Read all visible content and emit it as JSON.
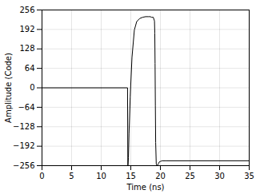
{
  "chart_data": {
    "type": "line",
    "xlabel": "Time (ns)",
    "ylabel": "Amplitude (Code)",
    "x": [
      0,
      14.45,
      14.5,
      14.52,
      14.6,
      14.7,
      14.9,
      15.2,
      15.6,
      16.0,
      16.5,
      17.0,
      17.5,
      18.0,
      18.3,
      18.5,
      18.8,
      19.0,
      19.05,
      19.1,
      19.15,
      19.2,
      19.3,
      19.4,
      19.5,
      19.6,
      19.7,
      19.8,
      20.0,
      20.3,
      21.0,
      35
    ],
    "values": [
      0,
      0,
      -256,
      -256,
      -230,
      -150,
      -30,
      100,
      190,
      218,
      228,
      232,
      234,
      234,
      234,
      232,
      232,
      220,
      180,
      80,
      -60,
      -180,
      -250,
      -256,
      -255,
      -252,
      -248,
      -244,
      -242,
      -240,
      -240,
      -240
    ],
    "color": "#000000",
    "xlim": [
      0,
      35
    ],
    "ylim": [
      -256,
      256
    ],
    "xticks": [
      0,
      5,
      10,
      15,
      20,
      25,
      30,
      35
    ],
    "yticks": [
      -256,
      -192,
      -128,
      -64,
      0,
      64,
      128,
      192,
      256
    ],
    "grid": true
  }
}
